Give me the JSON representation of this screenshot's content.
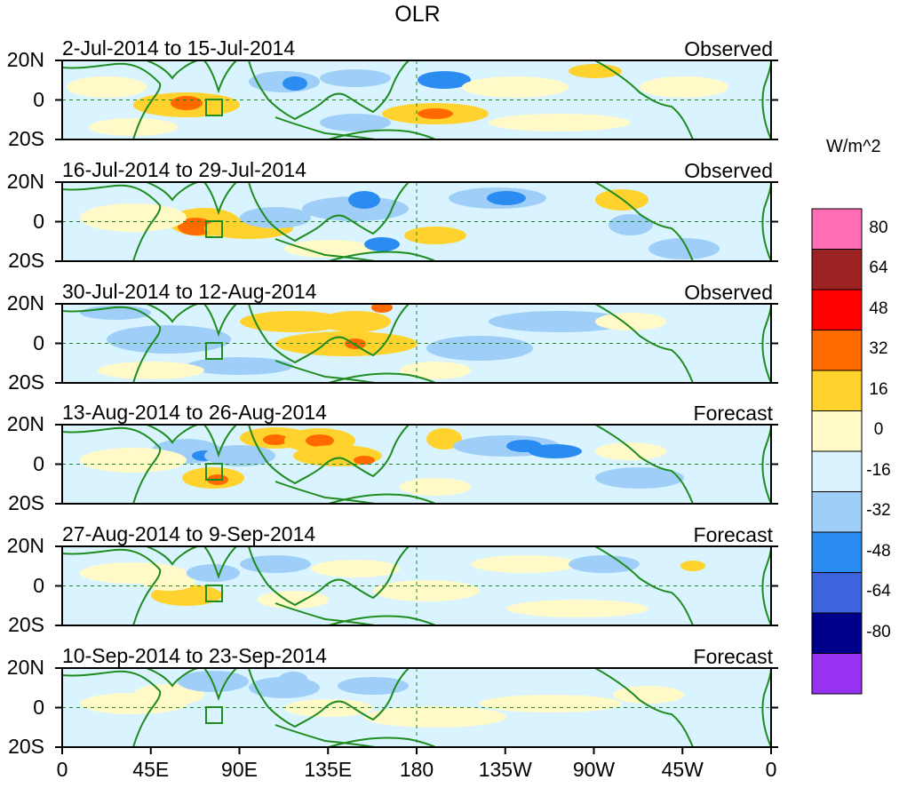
{
  "title": "OLR",
  "units": "W/m^2",
  "lat_ticks": [
    "20N",
    "0",
    "20S"
  ],
  "lon_ticks": [
    "0",
    "45E",
    "90E",
    "135E",
    "180",
    "135W",
    "90W",
    "45W",
    "0"
  ],
  "panels": [
    {
      "period": "2-Jul-2014 to 15-Jul-2014",
      "kind": "Observed"
    },
    {
      "period": "16-Jul-2014 to 29-Jul-2014",
      "kind": "Observed"
    },
    {
      "period": "30-Jul-2014 to 12-Aug-2014",
      "kind": "Observed"
    },
    {
      "period": "13-Aug-2014 to 26-Aug-2014",
      "kind": "Forecast"
    },
    {
      "period": "27-Aug-2014 to 9-Sep-2014",
      "kind": "Forecast"
    },
    {
      "period": "10-Sep-2014 to 23-Sep-2014",
      "kind": "Forecast"
    }
  ],
  "colorbar": {
    "labels": [
      "80",
      "64",
      "48",
      "32",
      "16",
      "0",
      "-16",
      "-32",
      "-48",
      "-64",
      "-80"
    ],
    "colors": [
      "#ff6eb4",
      "#9c2323",
      "#ff0000",
      "#ff6a00",
      "#ffd22e",
      "#fffac8",
      "#d9f4ff",
      "#9fcff8",
      "#2a8cf0",
      "#3c64dc",
      "#00008c",
      "#9632f0"
    ]
  },
  "colors": {
    "land_outline": "#1e8c1e",
    "background_field": "#d9f4ff",
    "warm_light": "#fffac8",
    "warm_mid": "#ffd22e",
    "warm_strong": "#ff6a00",
    "warm_extreme": "#ff0000",
    "cool_light": "#9fcff8",
    "cool_mid": "#2a8cf0",
    "cool_strong": "#3c64dc"
  }
}
